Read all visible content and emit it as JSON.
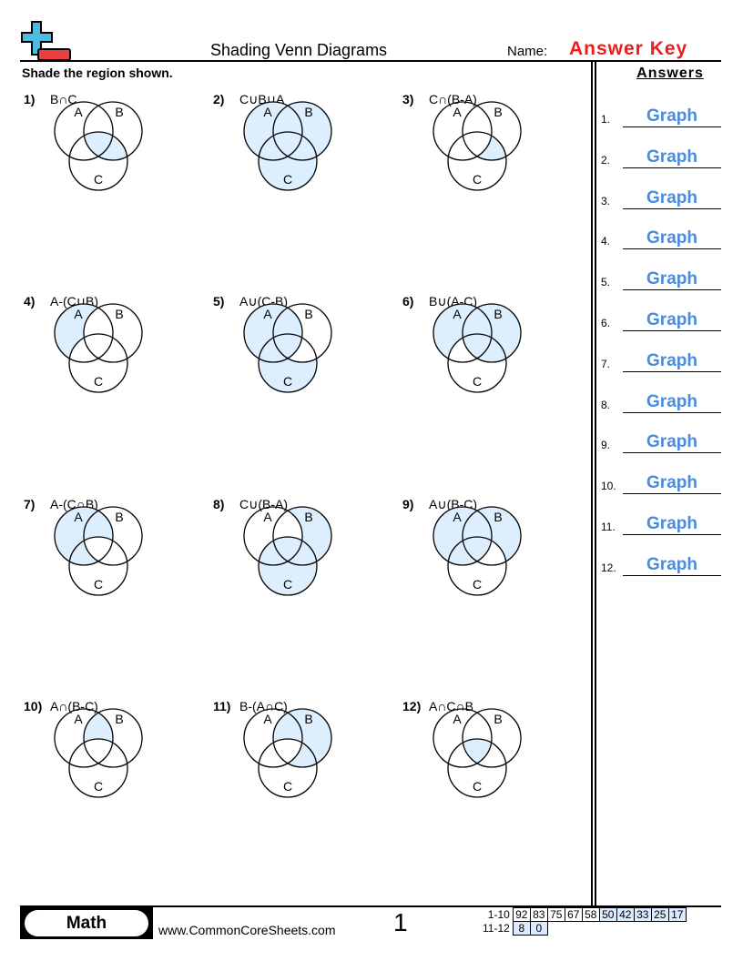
{
  "header": {
    "title": "Shading Venn Diagrams",
    "name_label": "Name:",
    "name_value": "Answer Key",
    "instructions": "Shade the region shown."
  },
  "colors": {
    "shade": "#ddeeff",
    "answer": "#4a8be0",
    "key": "#ee1c1c",
    "logo_plus": "#4dbbe0",
    "logo_minus": "#e84040"
  },
  "circle_labels": {
    "a": "A",
    "b": "B",
    "c": "C"
  },
  "problems": [
    {
      "num": "1)",
      "expr": "B∩C",
      "shaded": [
        "bc",
        "abc"
      ]
    },
    {
      "num": "2)",
      "expr": "C∪B∪A",
      "shaded": [
        "a",
        "b",
        "c",
        "ab",
        "ac",
        "bc",
        "abc"
      ]
    },
    {
      "num": "3)",
      "expr": "C∩(B-A)",
      "shaded": [
        "bc"
      ]
    },
    {
      "num": "4)",
      "expr": "A-(C∪B)",
      "shaded": [
        "a"
      ]
    },
    {
      "num": "5)",
      "expr": "A∪(C-B)",
      "shaded": [
        "a",
        "ab",
        "ac",
        "abc",
        "c"
      ]
    },
    {
      "num": "6)",
      "expr": "B∪(A-C)",
      "shaded": [
        "b",
        "ab",
        "bc",
        "abc",
        "a"
      ]
    },
    {
      "num": "7)",
      "expr": "A-(C∩B)",
      "shaded": [
        "a",
        "ab",
        "ac"
      ]
    },
    {
      "num": "8)",
      "expr": "C∪(B-A)",
      "shaded": [
        "c",
        "ac",
        "bc",
        "abc",
        "b"
      ]
    },
    {
      "num": "9)",
      "expr": "A∪(B-C)",
      "shaded": [
        "a",
        "ab",
        "ac",
        "abc",
        "b"
      ]
    },
    {
      "num": "10)",
      "expr": "A∩(B-C)",
      "shaded": [
        "ab"
      ]
    },
    {
      "num": "11)",
      "expr": "B-(A∩C)",
      "shaded": [
        "b",
        "ab",
        "bc"
      ]
    },
    {
      "num": "12)",
      "expr": "A∩C∩B",
      "shaded": [
        "abc"
      ]
    }
  ],
  "answers": {
    "heading": "Answers",
    "items": [
      {
        "num": "1.",
        "value": "Graph"
      },
      {
        "num": "2.",
        "value": "Graph"
      },
      {
        "num": "3.",
        "value": "Graph"
      },
      {
        "num": "4.",
        "value": "Graph"
      },
      {
        "num": "5.",
        "value": "Graph"
      },
      {
        "num": "6.",
        "value": "Graph"
      },
      {
        "num": "7.",
        "value": "Graph"
      },
      {
        "num": "8.",
        "value": "Graph"
      },
      {
        "num": "9.",
        "value": "Graph"
      },
      {
        "num": "10.",
        "value": "Graph"
      },
      {
        "num": "11.",
        "value": "Graph"
      },
      {
        "num": "12.",
        "value": "Graph"
      }
    ]
  },
  "footer": {
    "subject": "Math",
    "website": "www.CommonCoreSheets.com",
    "page": "1",
    "score_rows": [
      {
        "label": "1-10",
        "values": [
          "92",
          "83",
          "75",
          "67",
          "58",
          "50",
          "42",
          "33",
          "25",
          "17"
        ],
        "highlighted_from": 5
      },
      {
        "label": "11-12",
        "values": [
          "8",
          "0"
        ],
        "highlighted_from": 0
      }
    ]
  }
}
